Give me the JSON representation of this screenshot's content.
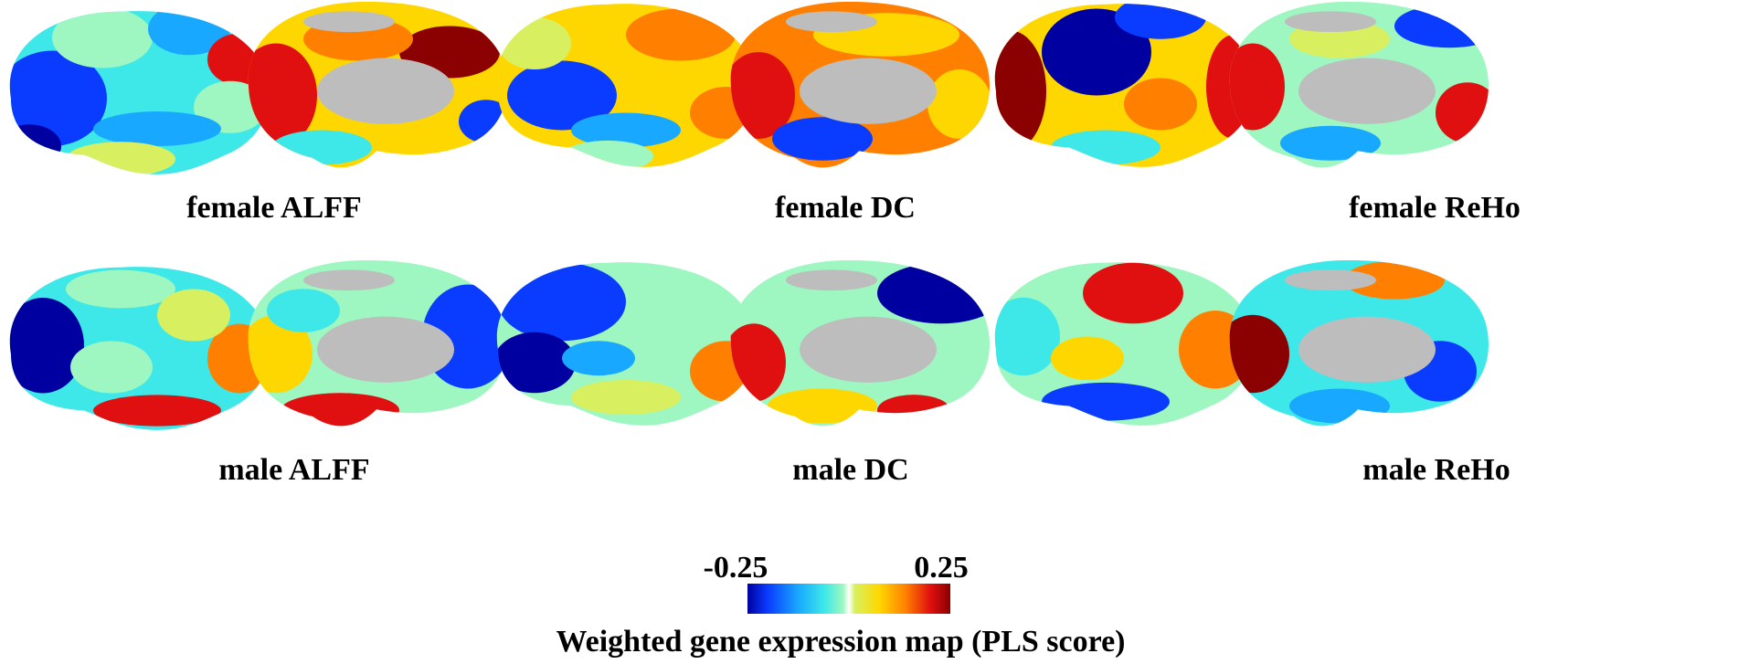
{
  "panels": [
    {
      "label": "female ALFF"
    },
    {
      "label": "female DC"
    },
    {
      "label": "female ReHo"
    },
    {
      "label": "male ALFF"
    },
    {
      "label": "male DC"
    },
    {
      "label": "male ReHo"
    }
  ],
  "colorbar": {
    "min_label": "-0.25",
    "max_label": "0.25",
    "title": "Weighted gene expression map (PLS score)",
    "colors": [
      "#0000a0",
      "#0a3cff",
      "#18a8ff",
      "#3ee8e8",
      "#9ef7c0",
      "#ffffff",
      "#d8f060",
      "#ffd700",
      "#ff8000",
      "#e01010",
      "#8b0000"
    ]
  },
  "colors": {
    "medial_wall": "#bdbdbd",
    "background": "#ffffff"
  }
}
